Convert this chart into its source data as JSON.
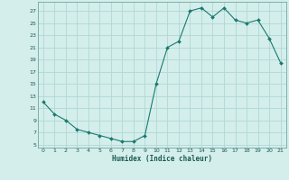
{
  "x": [
    0,
    1,
    2,
    3,
    4,
    5,
    6,
    7,
    8,
    9,
    10,
    11,
    12,
    13,
    14,
    15,
    16,
    17,
    18,
    19,
    20,
    21
  ],
  "y": [
    12,
    10,
    9,
    7.5,
    7,
    6.5,
    6,
    5.5,
    5.5,
    6.5,
    15,
    21,
    22,
    27,
    27.5,
    26,
    27.5,
    25.5,
    25,
    25.5,
    22.5,
    18.5
  ],
  "line_color": "#1a7a6e",
  "marker": "D",
  "marker_size": 2.0,
  "bg_color": "#d4eeec",
  "grid_color": "#b0d8d5",
  "xlabel": "Humidex (Indice chaleur)",
  "xlim": [
    -0.5,
    21.5
  ],
  "ylim": [
    4.5,
    28.5
  ],
  "yticks": [
    5,
    7,
    9,
    11,
    13,
    15,
    17,
    19,
    21,
    23,
    25,
    27
  ],
  "xticks": [
    0,
    1,
    2,
    3,
    4,
    5,
    6,
    7,
    8,
    9,
    10,
    11,
    12,
    13,
    14,
    15,
    16,
    17,
    18,
    19,
    20,
    21
  ]
}
